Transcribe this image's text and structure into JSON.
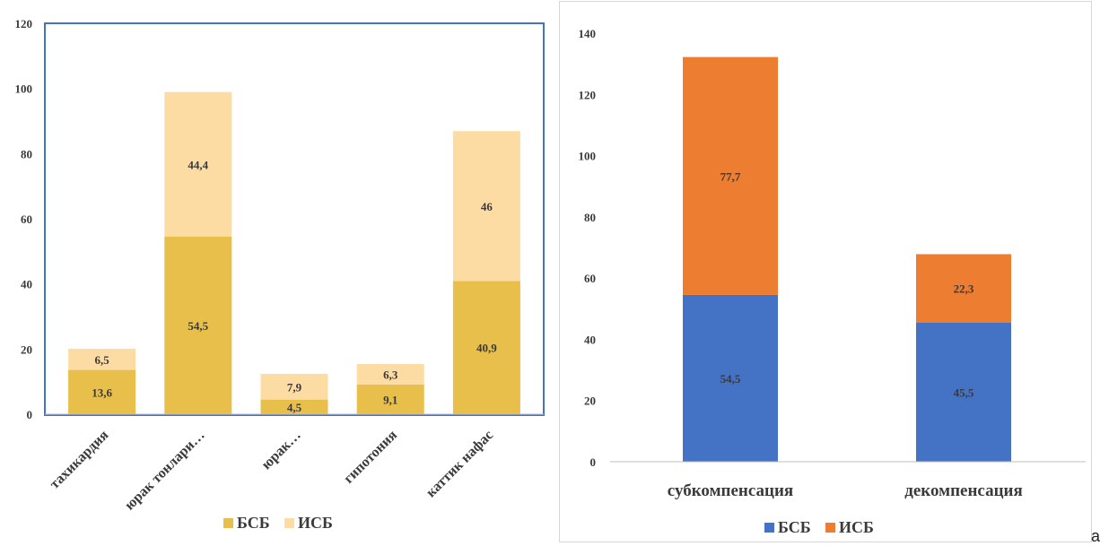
{
  "chart_data": [
    {
      "type": "bar",
      "stacked": true,
      "categories": [
        "тахикардия",
        "юрак тонлари…",
        "юрак…",
        "гипотония",
        "каттик нафас"
      ],
      "series": [
        {
          "name": "БСБ",
          "values": [
            13.6,
            54.5,
            4.5,
            9.1,
            40.9
          ],
          "labels": [
            "13,6",
            "54,5",
            "4,5",
            "9,1",
            "40,9"
          ],
          "color": "#e8bf4b"
        },
        {
          "name": "ИСБ",
          "values": [
            6.5,
            44.4,
            7.9,
            6.3,
            46
          ],
          "labels": [
            "6,5",
            "44,4",
            "7,9",
            "6,3",
            "46"
          ],
          "color": "#fddca4"
        }
      ],
      "yticks": [
        "0",
        "20",
        "40",
        "60",
        "80",
        "100",
        "120"
      ],
      "ylim": [
        0,
        120
      ],
      "grid": false,
      "legend": "bottom",
      "frame_color": "#4472c4"
    },
    {
      "type": "bar",
      "stacked": true,
      "categories": [
        "субкомпенсация",
        "декомпенсация"
      ],
      "series": [
        {
          "name": "БСБ",
          "values": [
            54.5,
            45.5
          ],
          "labels": [
            "54,5",
            "45,5"
          ],
          "color": "#4472c4"
        },
        {
          "name": "ИСБ",
          "values": [
            77.7,
            22.3
          ],
          "labels": [
            "77,7",
            "22,3"
          ],
          "color": "#ed7d31"
        }
      ],
      "yticks": [
        "0",
        "20",
        "40",
        "60",
        "80",
        "100",
        "120",
        "140"
      ],
      "ylim": [
        0,
        140
      ],
      "grid": false,
      "legend": "bottom"
    }
  ],
  "stray_text": "а"
}
